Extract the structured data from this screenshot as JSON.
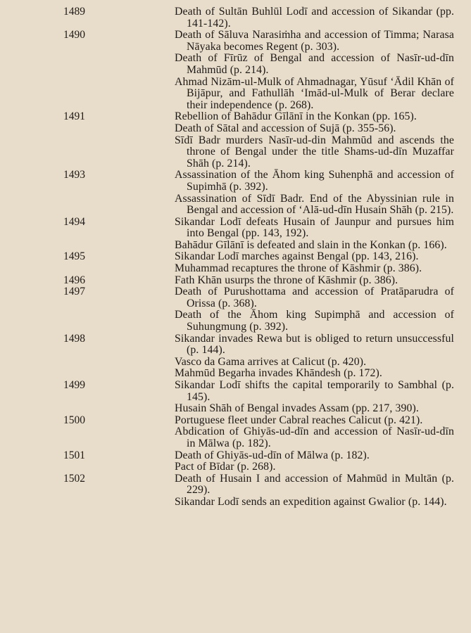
{
  "entries": [
    {
      "year": "1489",
      "text": "Death of Sultān Buhlūl Lodī and accession of Sikandar (pp. 141-142)."
    },
    {
      "year": "1490",
      "text": "Death of Sāluva Narasiṁha and accession of Timma; Narasa Nāyaka becomes Regent (p. 303)."
    },
    {
      "year": "",
      "text": "Death of Fīrūz of Bengal and accession of Nasīr-ud-dīn Mahmūd (p. 214)."
    },
    {
      "year": "",
      "text": "Ahmad Nizām-ul-Mulk of Ahmadnagar, Yūsuf ‘Ādil Khān of Bijāpur, and Fathullāh ‘Imād-ul-Mulk of Berar declare their independence (p. 268)."
    },
    {
      "year": "1491",
      "text": "Rebellion of Bahādur Gīlānī in the Konkan (pp. 165)."
    },
    {
      "year": "",
      "text": "Death of Sātal and accession of Sujā (p. 355-56)."
    },
    {
      "year": "",
      "text": "Sīdī Badr murders Nasīr-ud-din Mahmūd and ascends the throne of Bengal under the title Shams-ud-dīn Muzaffar Shāh (p. 214)."
    },
    {
      "year": "1493",
      "text": "Assassination of the Āhom king Suhenphā and accession of Supimhā (p. 392)."
    },
    {
      "year": "",
      "text": "Assassination of Sīdī Badr. End of the Abyssinian rule in Bengal and accession of ‘Alā-ud-dīn Husain Shāh (p. 215)."
    },
    {
      "year": "1494",
      "text": "Sikandar Lodī defeats Husain of Jaunpur and pursues him into Bengal (pp. 143, 192)."
    },
    {
      "year": "",
      "text": "Bahādur Gīlānī is defeated and slain in the Konkan (p. 166)."
    },
    {
      "year": "1495",
      "text": "Sikandar Lodī marches against Bengal (pp. 143, 216)."
    },
    {
      "year": "",
      "text": "Muhammad recaptures the throne of Kāshmir (p. 386)."
    },
    {
      "year": "1496",
      "text": "Fath Khān usurps the throne of Kāshmir (p. 386)."
    },
    {
      "year": "1497",
      "text": "Death of Purushottama and accession of Pratāparudra of Orissa (p. 368)."
    },
    {
      "year": "",
      "text": "Death of the Āhom king Supimphā and accession of Suhungmung (p. 392)."
    },
    {
      "year": "1498",
      "text": "Sikandar invades Rewa but is obliged to return unsuccessful (p. 144)."
    },
    {
      "year": "",
      "text": "Vasco da Gama arrives at Calicut (p. 420)."
    },
    {
      "year": "",
      "text": "Mahmūd Begarha invades Khāndesh (p. 172)."
    },
    {
      "year": "1499",
      "text": "Sikandar Lodī shifts the capital temporarily to Sambhal (p. 145)."
    },
    {
      "year": "",
      "text": "Husain Shāh of Bengal invades Assam (pp. 217, 390)."
    },
    {
      "year": "1500",
      "text": "Portuguese fleet under Cabral reaches Calicut (p. 421)."
    },
    {
      "year": "",
      "text": "Abdication of Ghiyās-ud-dīn and accession of Nasīr-ud-dīn in Mālwa (p. 182)."
    },
    {
      "year": "1501",
      "text": "Death of Ghiyās-ud-dīn of Mālwa (p. 182)."
    },
    {
      "year": "",
      "text": "Pact of Bīdar (p. 268)."
    },
    {
      "year": "1502",
      "text": "Death of Husain I and accession of Mahmūd in Multān (p. 229)."
    },
    {
      "year": "",
      "text": "Sikandar Lodī sends an expedition against Gwalior (p. 144)."
    }
  ]
}
